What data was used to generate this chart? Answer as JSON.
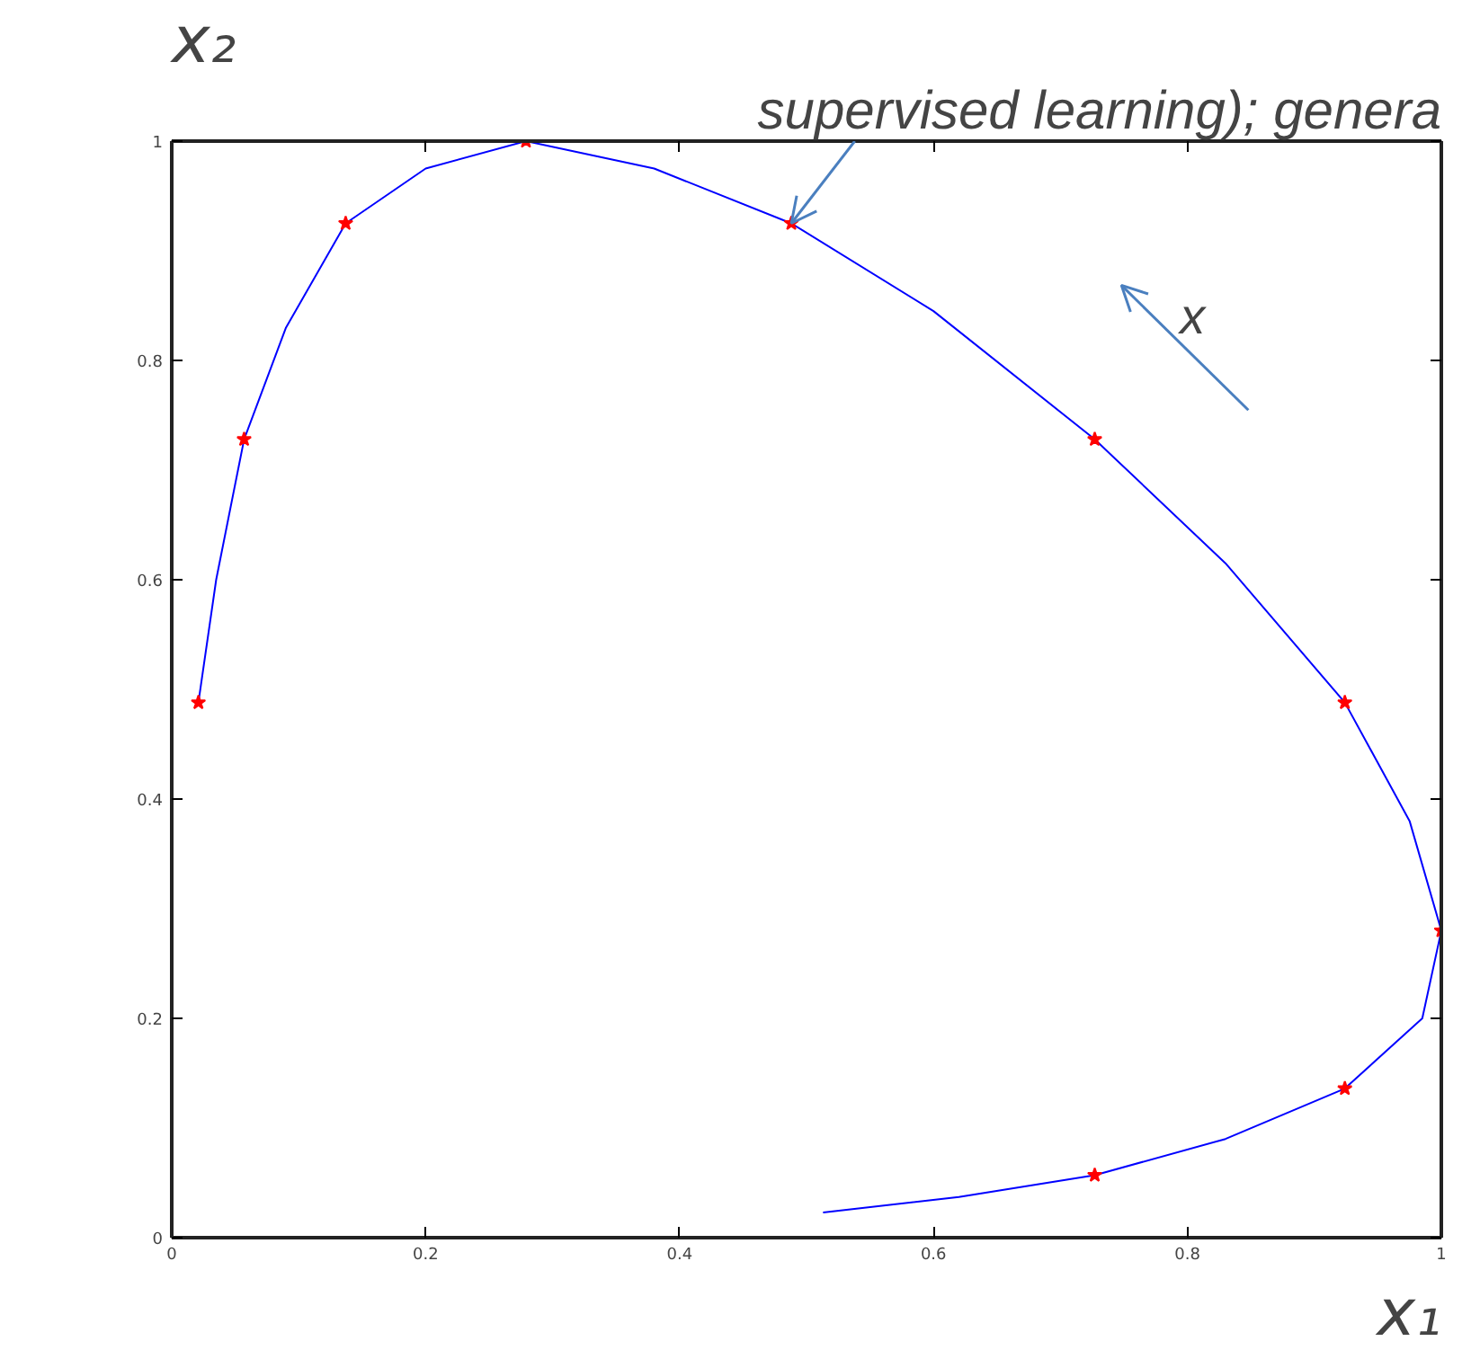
{
  "chart_data": {
    "type": "line",
    "xlabel": "x₁",
    "ylabel": "x₂",
    "xlim": [
      0,
      1
    ],
    "ylim": [
      0,
      1
    ],
    "xticks": [
      0,
      0.2,
      0.4,
      0.6,
      0.8,
      1
    ],
    "yticks": [
      0,
      0.2,
      0.4,
      0.6,
      0.8,
      1
    ],
    "grid": false,
    "series": [
      {
        "color": "#0000ff",
        "marker": "none",
        "line_style": "solid",
        "x": [
          0.021,
          0.035,
          0.057,
          0.09,
          0.137,
          0.2,
          0.279,
          0.38,
          0.488,
          0.6,
          0.727,
          0.83,
          0.924,
          0.975,
          1.0,
          0.985,
          0.924,
          0.83,
          0.727,
          0.62,
          0.513
        ],
        "values": [
          0.488,
          0.6,
          0.728,
          0.83,
          0.925,
          0.975,
          1.0,
          0.975,
          0.925,
          0.845,
          0.728,
          0.615,
          0.488,
          0.38,
          0.28,
          0.2,
          0.136,
          0.09,
          0.057,
          0.037,
          0.023
        ]
      },
      {
        "type": "scatter",
        "color": "#ff0000",
        "marker": "star",
        "x": [
          0.021,
          0.057,
          0.137,
          0.279,
          0.488,
          0.727,
          0.924,
          1.0,
          0.924,
          0.727
        ],
        "values": [
          0.488,
          0.728,
          0.925,
          1.0,
          0.925,
          0.728,
          0.488,
          0.28,
          0.136,
          0.057
        ]
      }
    ],
    "annotations": [
      {
        "text": "supervised learning); genera",
        "x": 0.488,
        "y": 0.925
      },
      "x"
    ]
  }
}
